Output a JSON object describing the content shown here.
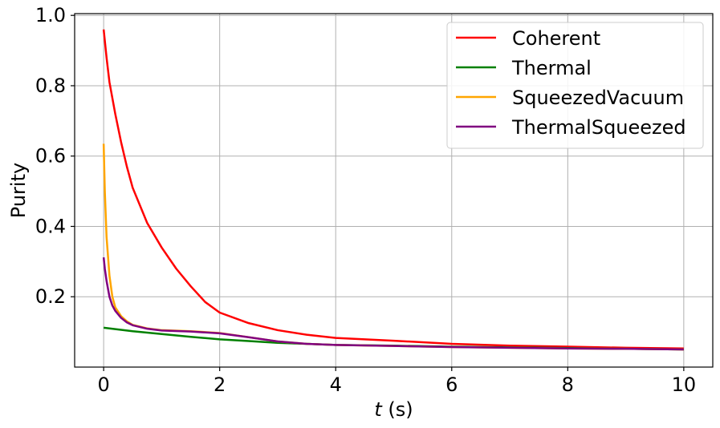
{
  "chart_data": {
    "type": "line",
    "title": "",
    "xlabel_var": "t",
    "xlabel_unit": " (s)",
    "ylabel": "Purity",
    "xlim": [
      -0.5,
      10.5
    ],
    "ylim": [
      0.0,
      1.005
    ],
    "grid": true,
    "legend_position": "top-right",
    "x_ticks": [
      0,
      2,
      4,
      6,
      8,
      10
    ],
    "x_tick_labels": [
      "0",
      "2",
      "4",
      "6",
      "8",
      "10"
    ],
    "y_ticks": [
      0.2,
      0.4,
      0.6,
      0.8,
      1.0
    ],
    "y_tick_labels": [
      "0.2",
      "0.4",
      "0.6",
      "0.8",
      "1.0"
    ],
    "series": [
      {
        "name": "Coherent",
        "color": "#ff0000",
        "points": [
          [
            0.0,
            0.96
          ],
          [
            0.05,
            0.88
          ],
          [
            0.1,
            0.81
          ],
          [
            0.2,
            0.72
          ],
          [
            0.3,
            0.64
          ],
          [
            0.4,
            0.57
          ],
          [
            0.5,
            0.51
          ],
          [
            0.75,
            0.41
          ],
          [
            1.0,
            0.34
          ],
          [
            1.25,
            0.28
          ],
          [
            1.5,
            0.23
          ],
          [
            1.75,
            0.185
          ],
          [
            2.0,
            0.155
          ],
          [
            2.5,
            0.125
          ],
          [
            3.0,
            0.105
          ],
          [
            3.5,
            0.092
          ],
          [
            4.0,
            0.083
          ],
          [
            5.0,
            0.075
          ],
          [
            6.0,
            0.066
          ],
          [
            7.0,
            0.061
          ],
          [
            8.0,
            0.058
          ],
          [
            9.0,
            0.055
          ],
          [
            10.0,
            0.053
          ]
        ]
      },
      {
        "name": "Thermal",
        "color": "#008000",
        "points": [
          [
            0.0,
            0.112
          ],
          [
            0.5,
            0.102
          ],
          [
            1.0,
            0.094
          ],
          [
            1.5,
            0.086
          ],
          [
            2.0,
            0.079
          ],
          [
            2.5,
            0.074
          ],
          [
            3.0,
            0.069
          ],
          [
            3.5,
            0.066
          ],
          [
            4.0,
            0.063
          ],
          [
            5.0,
            0.061
          ],
          [
            6.0,
            0.058
          ],
          [
            7.0,
            0.056
          ],
          [
            8.0,
            0.054
          ],
          [
            9.0,
            0.052
          ],
          [
            10.0,
            0.05
          ]
        ]
      },
      {
        "name": "SqueezedVacuum",
        "color": "#ffa500",
        "points": [
          [
            0.0,
            0.635
          ],
          [
            0.02,
            0.5
          ],
          [
            0.05,
            0.37
          ],
          [
            0.1,
            0.26
          ],
          [
            0.15,
            0.2
          ],
          [
            0.2,
            0.17
          ],
          [
            0.3,
            0.145
          ],
          [
            0.4,
            0.13
          ],
          [
            0.5,
            0.12
          ],
          [
            0.75,
            0.11
          ],
          [
            1.0,
            0.105
          ],
          [
            1.5,
            0.102
          ],
          [
            2.0,
            0.097
          ],
          [
            2.5,
            0.085
          ],
          [
            3.0,
            0.073
          ],
          [
            3.5,
            0.066
          ],
          [
            4.0,
            0.063
          ],
          [
            5.0,
            0.06
          ],
          [
            6.0,
            0.057
          ],
          [
            7.0,
            0.055
          ],
          [
            8.0,
            0.053
          ],
          [
            9.0,
            0.052
          ],
          [
            10.0,
            0.05
          ]
        ]
      },
      {
        "name": "ThermalSqueezed",
        "color": "#800080",
        "points": [
          [
            0.0,
            0.312
          ],
          [
            0.02,
            0.28
          ],
          [
            0.05,
            0.245
          ],
          [
            0.1,
            0.2
          ],
          [
            0.15,
            0.175
          ],
          [
            0.2,
            0.16
          ],
          [
            0.3,
            0.14
          ],
          [
            0.4,
            0.127
          ],
          [
            0.5,
            0.119
          ],
          [
            0.75,
            0.109
          ],
          [
            1.0,
            0.104
          ],
          [
            1.5,
            0.101
          ],
          [
            2.0,
            0.096
          ],
          [
            2.5,
            0.085
          ],
          [
            3.0,
            0.073
          ],
          [
            3.5,
            0.066
          ],
          [
            4.0,
            0.063
          ],
          [
            5.0,
            0.06
          ],
          [
            6.0,
            0.057
          ],
          [
            7.0,
            0.055
          ],
          [
            8.0,
            0.053
          ],
          [
            9.0,
            0.052
          ],
          [
            10.0,
            0.05
          ]
        ]
      }
    ]
  }
}
